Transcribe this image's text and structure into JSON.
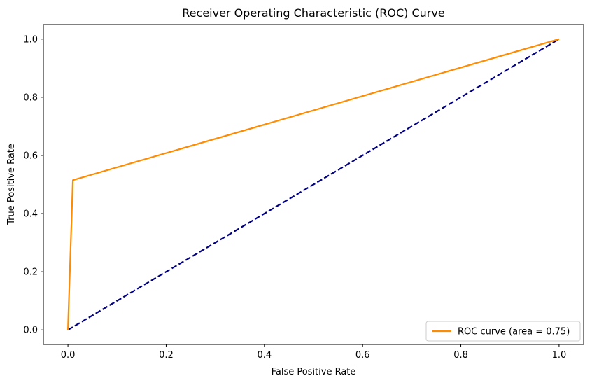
{
  "chart_data": {
    "type": "line",
    "title": "Receiver Operating Characteristic (ROC) Curve",
    "xlabel": "False Positive Rate",
    "ylabel": "True Positive Rate",
    "xlim": [
      -0.05,
      1.05
    ],
    "ylim": [
      -0.05,
      1.05
    ],
    "x_ticks": [
      "0.0",
      "0.2",
      "0.4",
      "0.6",
      "0.8",
      "1.0"
    ],
    "y_ticks": [
      "0.0",
      "0.2",
      "0.4",
      "0.6",
      "0.8",
      "1.0"
    ],
    "grid": false,
    "legend_position": "lower right",
    "series": [
      {
        "name": "ROC curve (area = 0.75)",
        "color": "#ff8c00",
        "style": "solid",
        "x": [
          0.0,
          0.01,
          1.0
        ],
        "y": [
          0.0,
          0.515,
          1.0
        ]
      },
      {
        "color": "#000080",
        "style": "dashed",
        "x": [
          0.0,
          1.0
        ],
        "y": [
          0.0,
          1.0
        ]
      }
    ]
  }
}
